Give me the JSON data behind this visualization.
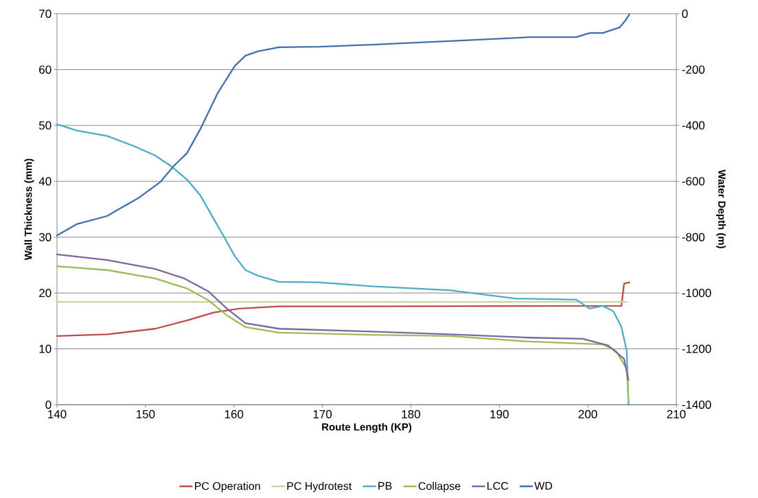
{
  "chart_data": {
    "type": "line",
    "xlabel": "Route Length (KP)",
    "ylabel": "Wall Thickness (mm)",
    "y2label": "Water Depth (m)",
    "xlim": [
      140,
      210
    ],
    "xticks": [
      140,
      150,
      160,
      170,
      180,
      190,
      200,
      210
    ],
    "ylim": [
      0,
      70
    ],
    "yticks": [
      0,
      10,
      20,
      30,
      40,
      50,
      60,
      70
    ],
    "y2lim": [
      -1400,
      0
    ],
    "y2ticks": [
      -1400,
      -1200,
      -1000,
      -800,
      -600,
      -400,
      -200,
      0
    ],
    "grid": "y",
    "legend": "bottom",
    "marker": "none",
    "line_style": "solid",
    "series": [
      {
        "name": "PC Operation",
        "color": "#be4b48",
        "x": [
          140,
          145.7,
          151.1,
          154.7,
          157.7,
          160.6,
          165.1,
          175.6,
          203.8,
          204.1,
          204.7
        ],
        "values": [
          12.3,
          12.6,
          13.6,
          15.1,
          16.5,
          17.2,
          17.6,
          17.6,
          17.7,
          21.7,
          21.9
        ]
      },
      {
        "name": "PC Hydrotest",
        "color": "#c3d69b",
        "x": [
          140,
          204.4
        ],
        "values": [
          18.4,
          18.4
        ]
      },
      {
        "name": "PB",
        "color": "#4bacc6",
        "x": [
          140,
          142.2,
          145.7,
          148.7,
          151.1,
          152.9,
          154.7,
          156.2,
          157.7,
          158.9,
          160.1,
          161.3,
          162.7,
          165.1,
          169.6,
          175.6,
          184.4,
          191.9,
          198.7,
          200.2,
          201.7,
          202.9,
          203.8,
          204.4,
          204.6
        ],
        "values": [
          50.2,
          49.1,
          48.1,
          46.3,
          44.6,
          42.7,
          40.3,
          37.5,
          33.3,
          30.0,
          26.6,
          24.1,
          23.1,
          22.0,
          21.9,
          21.2,
          20.5,
          19.0,
          18.8,
          17.2,
          17.7,
          16.7,
          13.9,
          9.6,
          0
        ]
      },
      {
        "name": "Collapse",
        "color": "#9bbb59",
        "x": [
          140,
          145.7,
          151.1,
          154.7,
          157.1,
          159.2,
          161.3,
          165.1,
          175.6,
          184.4,
          193.4,
          201.7,
          203.2,
          204.4,
          204.6
        ],
        "values": [
          24.8,
          24.1,
          22.6,
          20.8,
          18.7,
          16.0,
          13.9,
          12.9,
          12.5,
          12.3,
          11.3,
          10.8,
          9.6,
          6.4,
          0.5
        ]
      },
      {
        "name": "LCC",
        "color": "#8064a2",
        "x": [
          140,
          145.7,
          151.1,
          154.4,
          157.1,
          159.2,
          161.3,
          165.1,
          175.6,
          184.4,
          193.4,
          199.4,
          202.3,
          204.1,
          204.6
        ],
        "values": [
          26.9,
          25.9,
          24.3,
          22.6,
          20.3,
          17.2,
          14.6,
          13.6,
          13.1,
          12.6,
          12.0,
          11.8,
          10.6,
          8.2,
          4.4
        ]
      },
      {
        "name": "WD",
        "color": "#3f6fae",
        "axis": "y2",
        "x": [
          140,
          142.2,
          145.7,
          146.6,
          149.3,
          151.7,
          153.2,
          154.7,
          156.2,
          158.2,
          160.1,
          161.3,
          162.7,
          165.1,
          169.6,
          175.6,
          184.4,
          193.4,
          198.7,
          200.2,
          201.7,
          203.6,
          204.3,
          204.7
        ],
        "values": [
          -794,
          -754,
          -724,
          -707,
          -658,
          -602,
          -545,
          -499,
          -413,
          -282,
          -187,
          -150,
          -135,
          -120,
          -118,
          -111,
          -98,
          -84,
          -84,
          -69,
          -69,
          -49,
          -22,
          -2
        ]
      }
    ]
  }
}
